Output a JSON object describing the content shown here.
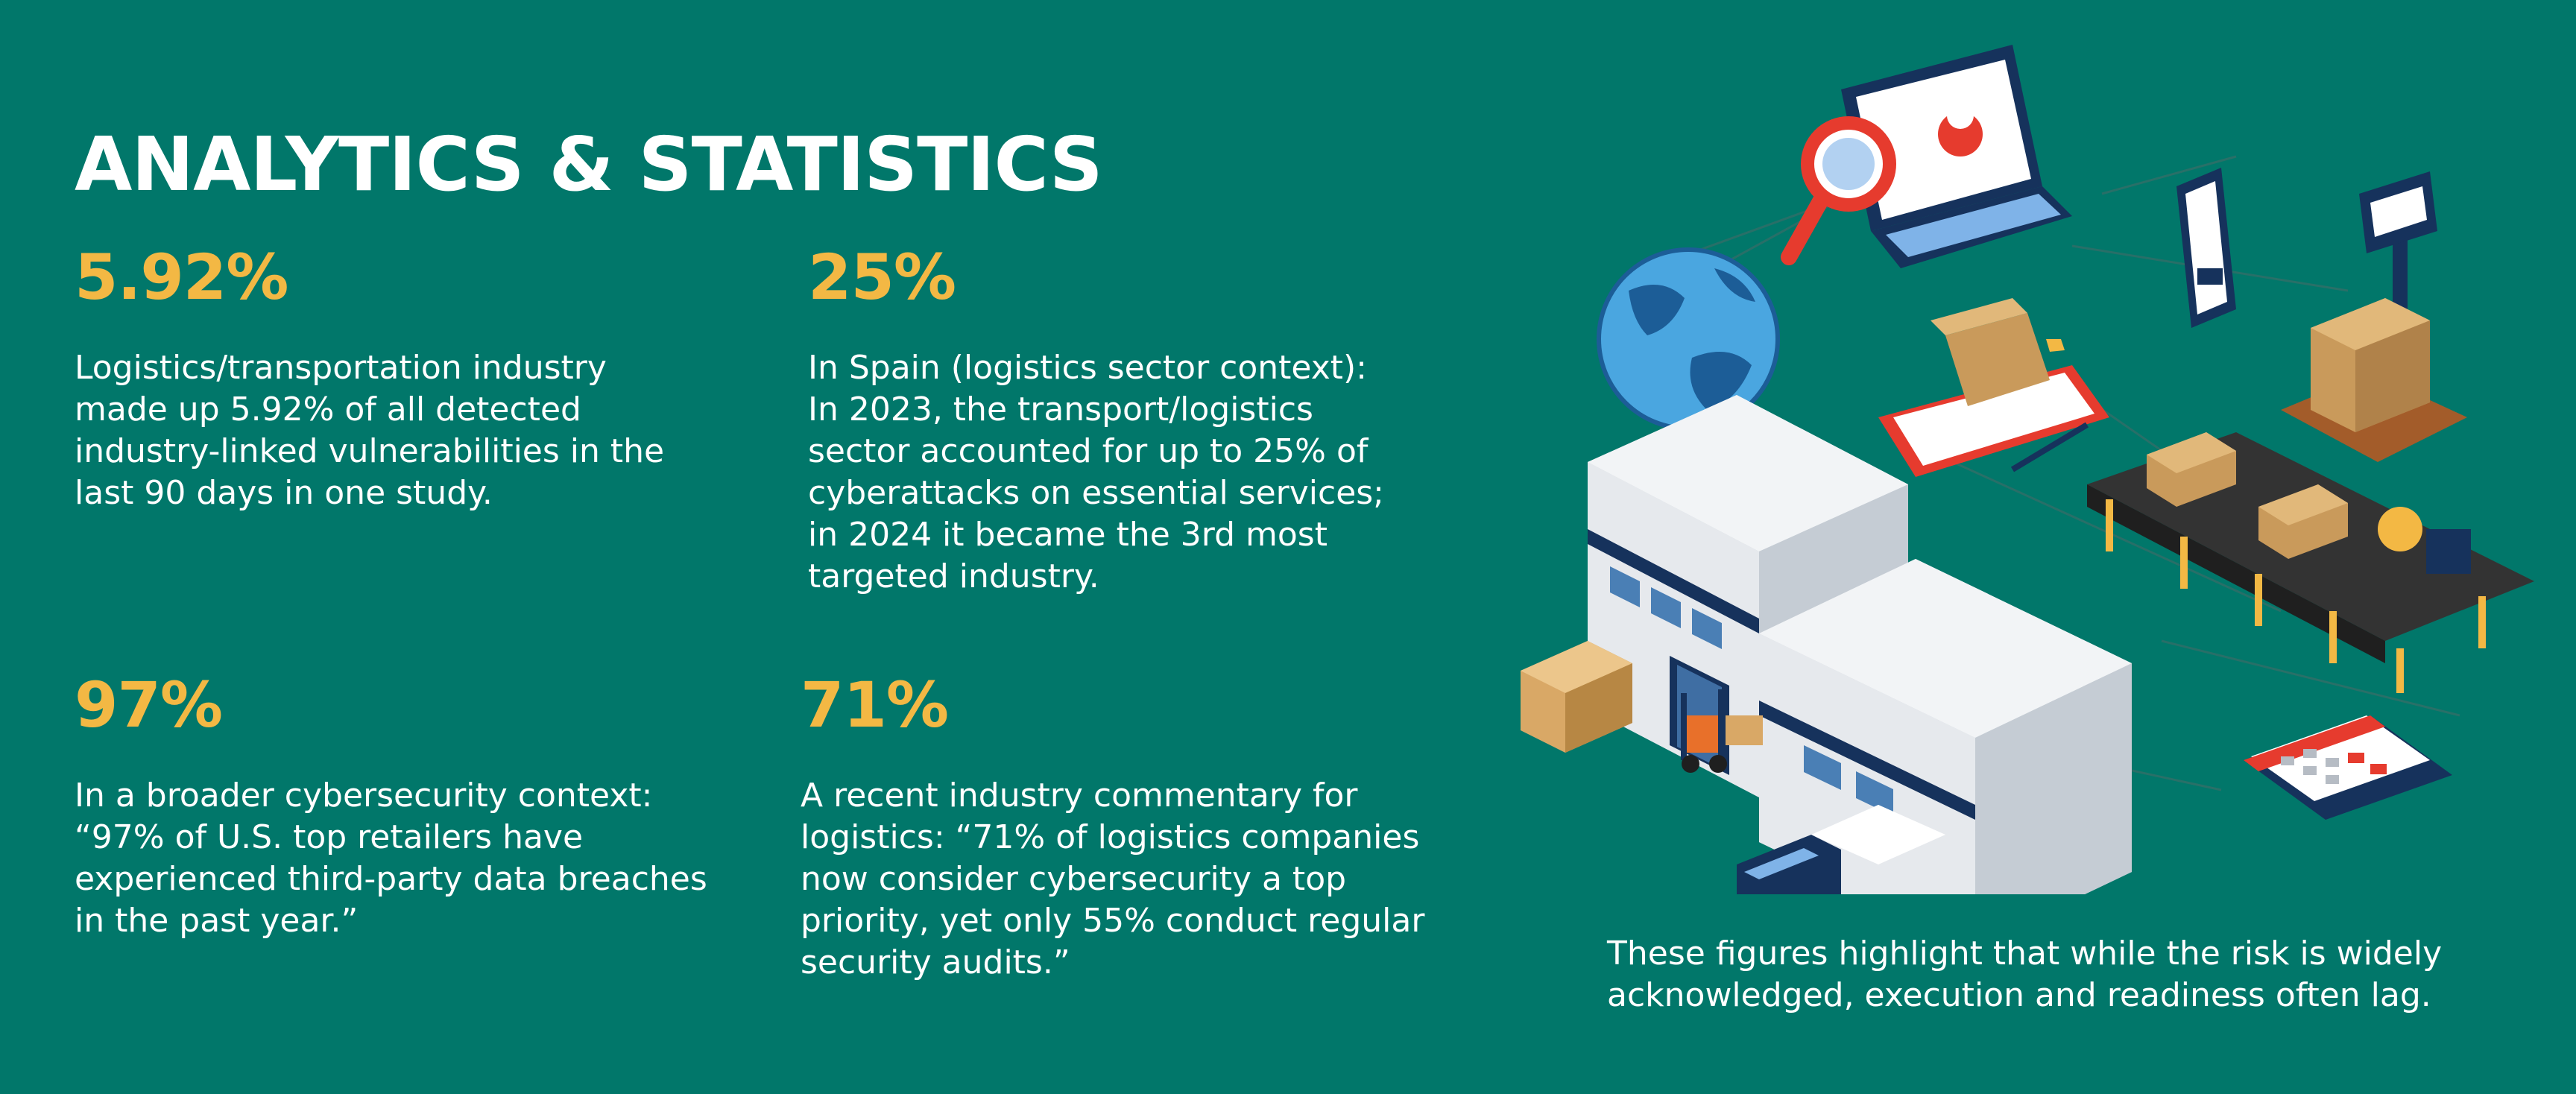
{
  "title": "ANALYTICS & STATISTICS",
  "stats": [
    {
      "value": "5.92%",
      "lines": [
        "Logistics/transportation industry",
        "made up 5.92% of all detected",
        "industry-linked vulnerabilities in the",
        "last 90 days in one study."
      ]
    },
    {
      "value": "25%",
      "lines": [
        "In Spain (logistics sector context):",
        "In 2023, the transport/logistics",
        "sector accounted for up to 25% of",
        "cyberattacks on essential services;",
        "in 2024 it became the 3rd most",
        "targeted industry."
      ]
    },
    {
      "value": "97%",
      "lines": [
        "In a broader cybersecurity context:",
        "“97% of U.S. top retailers have",
        "experienced third-party data breaches",
        "in the past year.”"
      ]
    },
    {
      "value": "71%",
      "lines": [
        "A recent industry commentary for",
        "logistics: “71% of logistics companies",
        "now consider cybersecurity a top",
        "priority, yet only 55% conduct regular",
        "security audits.”"
      ]
    }
  ],
  "summary": {
    "lines": [
      "These figures highlight that while the risk is widely",
      "acknowledged, execution and readiness often lag."
    ]
  },
  "colors": {
    "background": "#01776a",
    "accent": "#f3b844",
    "text": "#ffffff"
  },
  "illustration": {
    "icons": [
      "globe-icon",
      "laptop-icon",
      "magnifier-icon",
      "phone-icon",
      "package-icon",
      "scale-icon",
      "conveyor-icon",
      "warehouse-icon",
      "forklift-icon",
      "truck-icon",
      "pallet-icon",
      "calendar-icon"
    ]
  }
}
